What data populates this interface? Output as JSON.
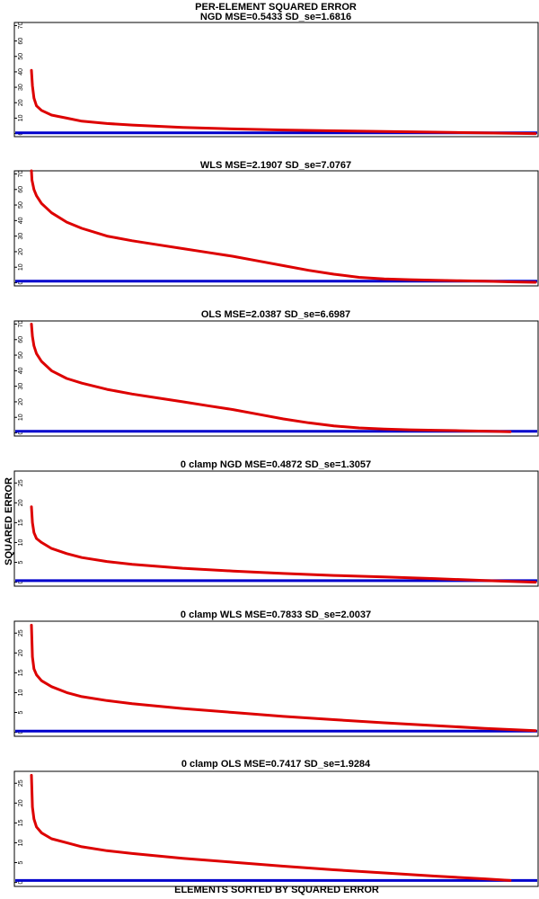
{
  "figure": {
    "title": "PER-ELEMENT SQUARED ERROR",
    "ylabel": "SQUARED ERROR",
    "xlabel": "ELEMENTS SORTED BY SQUARED ERROR",
    "colors": {
      "series_curve": "#dd0000",
      "baseline": "#0000cc"
    }
  },
  "chart_data": [
    {
      "type": "line",
      "title": "NGD MSE=0.5433 SD_se=1.6816",
      "ylim": [
        -2,
        72
      ],
      "yticks": [
        0,
        10,
        20,
        30,
        40,
        50,
        60,
        70
      ],
      "ytick_labels": [
        "0",
        "10",
        "20",
        "30",
        "40",
        "50",
        "60",
        "70"
      ],
      "xlim": [
        0,
        1
      ],
      "series": [
        {
          "x": [
            0.0,
            0.002,
            0.005,
            0.01,
            0.02,
            0.04,
            0.07,
            0.1,
            0.15,
            0.2,
            0.3,
            0.4,
            0.5,
            0.6,
            0.7,
            0.8,
            0.9,
            1.0
          ],
          "values": [
            41,
            31,
            23,
            18,
            15,
            12,
            10,
            8,
            6.5,
            5.5,
            4,
            3,
            2.3,
            1.8,
            1.3,
            0.9,
            0.4,
            0
          ]
        }
      ],
      "baseline": 0.5
    },
    {
      "type": "line",
      "title": "WLS MSE=2.1907 SD_se=7.0767",
      "ylim": [
        -2,
        72
      ],
      "yticks": [
        0,
        10,
        20,
        30,
        40,
        50,
        60,
        70
      ],
      "ytick_labels": [
        "0",
        "10",
        "20",
        "30",
        "40",
        "50",
        "60",
        "70"
      ],
      "xlim": [
        0,
        1
      ],
      "series": [
        {
          "x": [
            0.0,
            0.001,
            0.005,
            0.01,
            0.02,
            0.04,
            0.07,
            0.1,
            0.15,
            0.2,
            0.25,
            0.3,
            0.35,
            0.4,
            0.45,
            0.5,
            0.55,
            0.6,
            0.65,
            0.7,
            0.75,
            0.8,
            0.85,
            0.9,
            0.95,
            1.0
          ],
          "values": [
            72,
            66,
            60,
            56,
            51,
            45,
            39,
            35,
            30,
            27,
            24.5,
            22,
            19.5,
            17,
            14,
            11,
            8,
            5.5,
            3.5,
            2.5,
            2,
            1.6,
            1.3,
            1,
            0.6,
            0.3
          ]
        }
      ],
      "baseline": 1.0
    },
    {
      "type": "line",
      "title": "OLS MSE=2.0387 SD_se=6.6987",
      "ylim": [
        -2,
        72
      ],
      "yticks": [
        0,
        10,
        20,
        30,
        40,
        50,
        60,
        70
      ],
      "ytick_labels": [
        "0",
        "10",
        "20",
        "30",
        "40",
        "50",
        "60",
        "70"
      ],
      "xlim": [
        0,
        1
      ],
      "series": [
        {
          "x": [
            0.0,
            0.002,
            0.005,
            0.01,
            0.02,
            0.04,
            0.07,
            0.1,
            0.15,
            0.2,
            0.25,
            0.3,
            0.35,
            0.4,
            0.45,
            0.5,
            0.55,
            0.6,
            0.65,
            0.7,
            0.75,
            0.8,
            0.85,
            0.9,
            0.95
          ],
          "values": [
            70,
            62,
            56,
            51,
            46,
            40,
            35,
            32,
            28,
            25,
            22.5,
            20,
            17.5,
            15,
            12,
            9,
            6.5,
            4.5,
            3.2,
            2.5,
            2,
            1.7,
            1.4,
            1.1,
            0.8
          ]
        }
      ],
      "baseline": 1.0
    },
    {
      "type": "line",
      "title": "0 clamp NGD MSE=0.4872 SD_se=1.3057",
      "ylim": [
        -1,
        28
      ],
      "yticks": [
        0,
        5,
        10,
        15,
        20,
        25
      ],
      "ytick_labels": [
        "0",
        "5",
        "10",
        "15",
        "20",
        "25"
      ],
      "xlim": [
        0,
        1
      ],
      "series": [
        {
          "x": [
            0.0,
            0.002,
            0.005,
            0.01,
            0.02,
            0.04,
            0.07,
            0.1,
            0.15,
            0.2,
            0.3,
            0.4,
            0.5,
            0.6,
            0.7,
            0.8,
            0.9,
            1.0
          ],
          "values": [
            19,
            15,
            12.5,
            11,
            10,
            8.5,
            7.2,
            6.2,
            5.2,
            4.5,
            3.5,
            2.8,
            2.2,
            1.7,
            1.3,
            0.9,
            0.4,
            0
          ]
        }
      ],
      "baseline": 0.4
    },
    {
      "type": "line",
      "title": "0 clamp WLS MSE=0.7833 SD_se=2.0037",
      "ylim": [
        -1,
        28
      ],
      "yticks": [
        0,
        5,
        10,
        15,
        20,
        25
      ],
      "ytick_labels": [
        "0",
        "5",
        "10",
        "15",
        "20",
        "25"
      ],
      "xlim": [
        0,
        1
      ],
      "series": [
        {
          "x": [
            0.0,
            0.002,
            0.005,
            0.01,
            0.02,
            0.04,
            0.07,
            0.1,
            0.15,
            0.2,
            0.3,
            0.4,
            0.5,
            0.6,
            0.7,
            0.8,
            0.9,
            1.0
          ],
          "values": [
            27,
            19,
            16,
            14.5,
            13,
            11.5,
            10,
            9,
            8,
            7.2,
            6,
            5,
            4,
            3.2,
            2.4,
            1.7,
            1,
            0.4
          ]
        }
      ],
      "baseline": 0.3
    },
    {
      "type": "line",
      "title": "0 clamp OLS MSE=0.7417 SD_se=1.9284",
      "ylim": [
        -1,
        28
      ],
      "yticks": [
        0,
        5,
        10,
        15,
        20,
        25
      ],
      "ytick_labels": [
        "0",
        "5",
        "10",
        "15",
        "20",
        "25"
      ],
      "xlim": [
        0,
        1
      ],
      "series": [
        {
          "x": [
            0.0,
            0.002,
            0.005,
            0.01,
            0.02,
            0.04,
            0.07,
            0.1,
            0.15,
            0.2,
            0.3,
            0.4,
            0.5,
            0.6,
            0.7,
            0.8,
            0.9,
            0.95
          ],
          "values": [
            27,
            19,
            16,
            14,
            12.5,
            11,
            10,
            9,
            8,
            7.3,
            6.1,
            5.1,
            4.1,
            3.2,
            2.4,
            1.6,
            0.9,
            0.5
          ]
        }
      ],
      "baseline": 0.5
    }
  ]
}
